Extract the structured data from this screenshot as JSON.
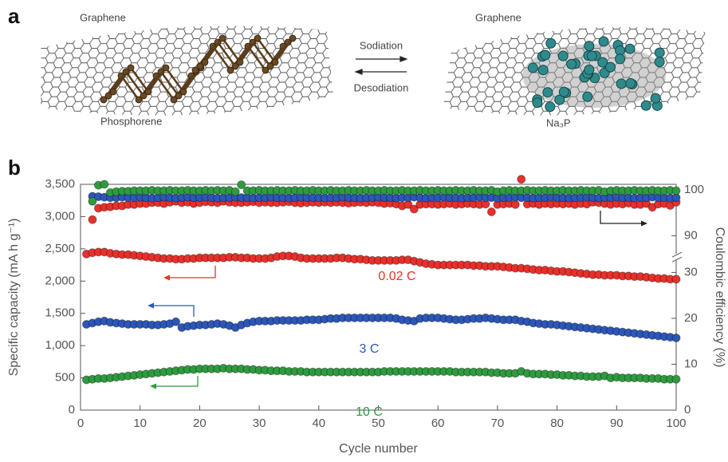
{
  "panel_a": {
    "label": "a",
    "left_sheet": "Graphene",
    "right_sheet": "Graphene",
    "forward": "Sodiation",
    "backward": "Desodiation",
    "left_species": "Phosphorene",
    "right_species": "Na₃P"
  },
  "chart_data": {
    "type": "scatter",
    "label": "b",
    "xlabel": "Cycle number",
    "ylabel": "Specific capacity (mA h g⁻¹)",
    "y2label": "Coulombic efficiency (%)",
    "xlim": [
      0,
      100
    ],
    "xticks": [
      0,
      10,
      20,
      30,
      40,
      50,
      60,
      70,
      80,
      90,
      100
    ],
    "ylim": [
      0,
      3500
    ],
    "yticks": [
      0,
      500,
      {
        "value": 1000,
        "label": "1,000"
      },
      {
        "value": 1500,
        "label": "1,500"
      },
      {
        "value": 2000,
        "label": "2,000"
      },
      {
        "value": 2500,
        "label": "2,500"
      },
      {
        "value": 3000,
        "label": "3,000"
      },
      {
        "value": 3500,
        "label": "3,500"
      }
    ],
    "y2lim": [
      0,
      101.2
    ],
    "y2break": [
      33,
      85
    ],
    "y2ticks": [
      0,
      10,
      20,
      30,
      90,
      100
    ],
    "x": [
      1,
      2,
      3,
      4,
      5,
      6,
      7,
      8,
      9,
      10,
      11,
      12,
      13,
      14,
      15,
      16,
      17,
      18,
      19,
      20,
      21,
      22,
      23,
      24,
      25,
      26,
      27,
      28,
      29,
      30,
      31,
      32,
      33,
      34,
      35,
      36,
      37,
      38,
      39,
      40,
      41,
      42,
      43,
      44,
      45,
      46,
      47,
      48,
      49,
      50,
      51,
      52,
      53,
      54,
      55,
      56,
      57,
      58,
      59,
      60,
      61,
      62,
      63,
      64,
      65,
      66,
      67,
      68,
      69,
      70,
      71,
      72,
      73,
      74,
      75,
      76,
      77,
      78,
      79,
      80,
      81,
      82,
      83,
      84,
      85,
      86,
      87,
      88,
      89,
      90,
      91,
      92,
      93,
      94,
      95,
      96,
      97,
      98,
      99,
      100
    ],
    "series": [
      {
        "name": "0.02 C",
        "color": "#e8302b",
        "values": [
          2420,
          2440,
          2450,
          2450,
          2430,
          2420,
          2410,
          2410,
          2400,
          2390,
          2380,
          2370,
          2360,
          2350,
          2350,
          2340,
          2340,
          2350,
          2350,
          2360,
          2360,
          2360,
          2360,
          2360,
          2370,
          2370,
          2360,
          2360,
          2350,
          2350,
          2350,
          2360,
          2380,
          2390,
          2390,
          2380,
          2360,
          2350,
          2350,
          2350,
          2350,
          2350,
          2360,
          2360,
          2350,
          2340,
          2340,
          2330,
          2320,
          2320,
          2320,
          2320,
          2320,
          2330,
          2330,
          2310,
          2290,
          2270,
          2260,
          2250,
          2250,
          2250,
          2250,
          2250,
          2250,
          2240,
          2240,
          2230,
          2230,
          2230,
          2220,
          2210,
          2200,
          2200,
          2190,
          2180,
          2170,
          2170,
          2160,
          2150,
          2150,
          2140,
          2130,
          2120,
          2110,
          2100,
          2100,
          2090,
          2090,
          2090,
          2080,
          2080,
          2070,
          2070,
          2060,
          2050,
          2040,
          2040,
          2030,
          2030
        ]
      },
      {
        "name": "3 C",
        "color": "#2c57b8",
        "values": [
          1330,
          1350,
          1370,
          1380,
          1360,
          1350,
          1340,
          1330,
          1330,
          1330,
          1330,
          1320,
          1320,
          1330,
          1340,
          1370,
          1280,
          1300,
          1310,
          1320,
          1320,
          1330,
          1340,
          1330,
          1310,
          1280,
          1320,
          1350,
          1370,
          1380,
          1380,
          1380,
          1390,
          1390,
          1390,
          1390,
          1390,
          1400,
          1400,
          1400,
          1410,
          1420,
          1420,
          1430,
          1430,
          1430,
          1430,
          1430,
          1430,
          1430,
          1430,
          1430,
          1420,
          1400,
          1390,
          1380,
          1420,
          1430,
          1430,
          1430,
          1420,
          1410,
          1400,
          1400,
          1410,
          1420,
          1420,
          1430,
          1420,
          1410,
          1400,
          1400,
          1400,
          1380,
          1370,
          1350,
          1340,
          1330,
          1330,
          1320,
          1310,
          1300,
          1290,
          1280,
          1270,
          1260,
          1250,
          1240,
          1230,
          1220,
          1210,
          1200,
          1190,
          1180,
          1170,
          1160,
          1150,
          1140,
          1130,
          1120
        ]
      },
      {
        "name": "10 C",
        "color": "#2e9b3f",
        "values": [
          470,
          480,
          490,
          490,
          500,
          510,
          520,
          530,
          540,
          550,
          560,
          570,
          580,
          590,
          600,
          610,
          620,
          630,
          630,
          640,
          640,
          640,
          640,
          650,
          640,
          640,
          640,
          630,
          630,
          620,
          620,
          610,
          610,
          610,
          600,
          600,
          600,
          590,
          590,
          590,
          590,
          590,
          590,
          590,
          590,
          590,
          590,
          590,
          590,
          590,
          600,
          600,
          600,
          600,
          600,
          600,
          600,
          600,
          600,
          600,
          600,
          600,
          590,
          590,
          590,
          590,
          590,
          590,
          580,
          580,
          570,
          570,
          570,
          600,
          570,
          560,
          560,
          560,
          550,
          550,
          540,
          540,
          530,
          530,
          520,
          520,
          520,
          530,
          500,
          510,
          500,
          500,
          500,
          500,
          490,
          490,
          490,
          480,
          480,
          480
        ]
      },
      {
        "color": "#e8302b",
        "axis": "y2",
        "values": [
          null,
          93.5,
          96,
          96.2,
          96.3,
          96.5,
          96.5,
          96.8,
          96.8,
          97,
          97,
          97.2,
          97.2,
          97,
          97.3,
          97.5,
          97.2,
          97.3,
          97,
          97.2,
          97.4,
          97.3,
          97.2,
          97.5,
          97.3,
          97.2,
          97.2,
          97.3,
          97.4,
          97.2,
          97.3,
          97.2,
          97.2,
          97.3,
          97.4,
          97.2,
          97.1,
          97.2,
          97.3,
          97.2,
          97.3,
          97.2,
          97.3,
          97.2,
          97.1,
          97.2,
          97.3,
          97.2,
          97.3,
          97.2,
          97,
          97.1,
          96.9,
          96.5,
          96.8,
          95.8,
          96.8,
          96.9,
          96.9,
          96.8,
          96.9,
          97,
          96.8,
          96.9,
          97,
          96.9,
          96.8,
          96.9,
          95.2,
          96.8,
          96.9,
          97,
          96.8,
          102.3,
          96.9,
          97,
          96.8,
          97,
          96.9,
          97,
          96.9,
          97,
          96.8,
          97,
          96.9,
          97.3,
          97.2,
          97,
          96.8,
          97,
          96.9,
          97.1,
          96.8,
          96.8,
          97,
          96.2,
          96.9,
          97,
          96.6,
          97.3
        ]
      },
      {
        "color": "#2c57b8",
        "axis": "y2",
        "values": [
          null,
          98.6,
          98.5,
          98.4,
          98.3,
          98.3,
          98.4,
          98.3,
          98.3,
          98.4,
          98.3,
          98.2,
          98.3,
          98.4,
          98.3,
          98.2,
          98.3,
          98.4,
          98.3,
          98.3,
          98.4,
          98.3,
          98.2,
          98.3,
          98.3,
          98.4,
          98.3,
          98.3,
          98.2,
          98.3,
          98.3,
          98.4,
          98.3,
          98.3,
          98.2,
          98.3,
          98.4,
          98.3,
          98.3,
          98.3,
          98.2,
          98.3,
          98.3,
          98.4,
          98.3,
          98.3,
          98.2,
          98.3,
          98.3,
          98.4,
          98.3,
          98.3,
          98.2,
          98.3,
          98.3,
          98.4,
          98.3,
          98.2,
          98.3,
          98.3,
          98.4,
          98.3,
          98.3,
          98.2,
          98.3,
          98.3,
          98.4,
          98.3,
          98.3,
          98.2,
          98.3,
          98.3,
          98.4,
          98.3,
          98.3,
          98.2,
          98.3,
          98.3,
          98.4,
          98.3,
          98.3,
          98.2,
          98.3,
          98.3,
          98.4,
          98.3,
          98.2,
          98.3,
          98.3,
          98.4,
          98.3,
          98.3,
          98.2,
          98.3,
          98.3,
          98.4,
          98.3,
          98.3,
          98.2,
          98.3
        ]
      },
      {
        "color": "#2e9b3f",
        "axis": "y2",
        "values": [
          null,
          97.5,
          101,
          101.2,
          99.4,
          99.6,
          99.7,
          99.7,
          99.8,
          99.8,
          99.8,
          99.9,
          99.8,
          99.8,
          99.9,
          99.8,
          99.8,
          99.9,
          99.8,
          99.8,
          99.9,
          99.8,
          99.9,
          99.8,
          99.9,
          99.6,
          101.1,
          99.8,
          99.8,
          99.9,
          99.8,
          99.8,
          99.9,
          99.8,
          99.8,
          99.9,
          99.8,
          99.8,
          99.9,
          99.8,
          99.8,
          99.9,
          99.8,
          99.8,
          99.9,
          99.8,
          99.8,
          99.9,
          99.8,
          99.8,
          99.9,
          99.8,
          99.8,
          99.9,
          99.8,
          99.8,
          99.9,
          99.8,
          99.8,
          99.9,
          99.8,
          99.8,
          99.9,
          99.8,
          99.8,
          99.9,
          99.8,
          99.8,
          99.9,
          99.6,
          99.8,
          99.9,
          99.8,
          99.8,
          99.9,
          99.8,
          99.8,
          99.9,
          99.8,
          99.8,
          99.9,
          99.8,
          99.8,
          99.9,
          99.8,
          99.8,
          99.9,
          99.6,
          99.8,
          99.9,
          99.8,
          99.8,
          99.9,
          99.8,
          99.8,
          99.9,
          99.8,
          99.8,
          99.9,
          99.8
        ]
      }
    ]
  }
}
